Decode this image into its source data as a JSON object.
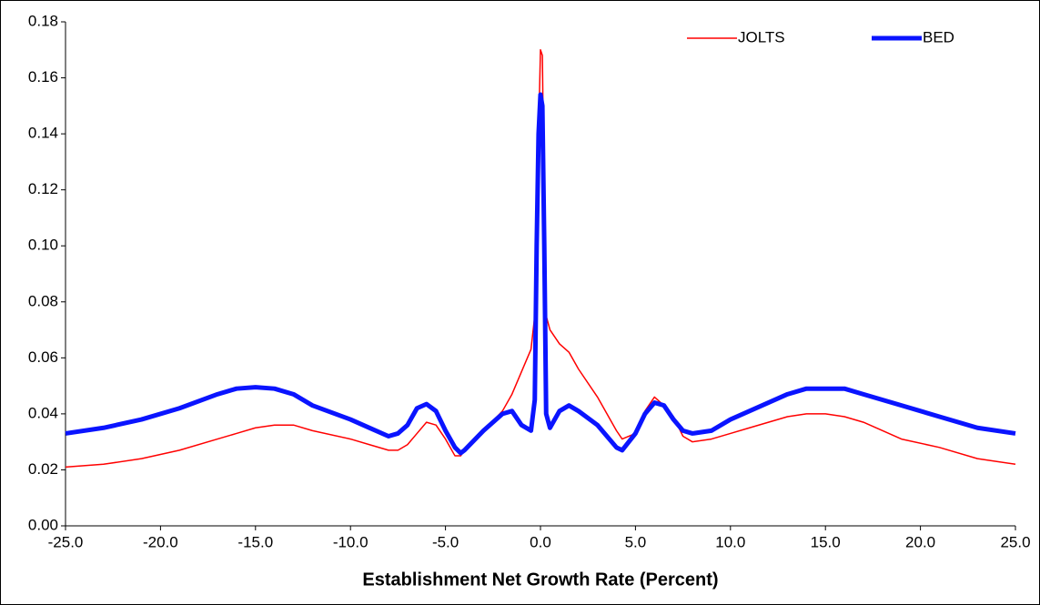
{
  "chart_data": {
    "type": "line",
    "x_label": "Establishment Net Growth Rate (Percent)",
    "x": [
      -25,
      -23,
      -21,
      -19,
      -17,
      -16,
      -15,
      -14,
      -13,
      -12,
      -10,
      -9,
      -8,
      -7.5,
      -7,
      -6.5,
      -6,
      -5.5,
      -5,
      -4.5,
      -4.2,
      -4,
      -3,
      -2,
      -1.5,
      -1,
      -0.5,
      -0.3,
      -0.2,
      -0.1,
      0,
      0.1,
      0.2,
      0.3,
      0.5,
      1,
      1.5,
      2,
      3,
      4,
      4.3,
      5,
      5.5,
      6,
      6.5,
      7,
      7.5,
      8,
      9,
      10,
      11,
      12,
      13,
      14,
      15,
      16,
      17,
      19,
      21,
      23,
      25
    ],
    "series": [
      {
        "name": "JOLTS",
        "color": "#ff0000",
        "width": 1.5,
        "values": [
          0.021,
          0.022,
          0.024,
          0.027,
          0.031,
          0.033,
          0.035,
          0.036,
          0.036,
          0.034,
          0.031,
          0.029,
          0.027,
          0.027,
          0.029,
          0.033,
          0.037,
          0.036,
          0.031,
          0.025,
          0.025,
          0.027,
          0.034,
          0.041,
          0.047,
          0.055,
          0.063,
          0.075,
          0.1,
          0.14,
          0.17,
          0.168,
          0.11,
          0.075,
          0.07,
          0.065,
          0.062,
          0.056,
          0.046,
          0.034,
          0.031,
          0.033,
          0.041,
          0.046,
          0.043,
          0.039,
          0.032,
          0.03,
          0.031,
          0.033,
          0.035,
          0.037,
          0.039,
          0.04,
          0.04,
          0.039,
          0.037,
          0.031,
          0.028,
          0.024,
          0.022
        ]
      },
      {
        "name": "BED",
        "color": "#0a14ff",
        "width": 5,
        "values": [
          0.033,
          0.035,
          0.038,
          0.042,
          0.047,
          0.049,
          0.0495,
          0.049,
          0.047,
          0.043,
          0.038,
          0.035,
          0.032,
          0.033,
          0.036,
          0.042,
          0.0435,
          0.041,
          0.034,
          0.028,
          0.026,
          0.027,
          0.034,
          0.04,
          0.041,
          0.036,
          0.034,
          0.045,
          0.1,
          0.14,
          0.154,
          0.15,
          0.1,
          0.04,
          0.035,
          0.041,
          0.043,
          0.041,
          0.036,
          0.028,
          0.027,
          0.033,
          0.04,
          0.044,
          0.043,
          0.038,
          0.034,
          0.033,
          0.034,
          0.038,
          0.041,
          0.044,
          0.047,
          0.049,
          0.049,
          0.049,
          0.047,
          0.043,
          0.039,
          0.035,
          0.033
        ]
      }
    ],
    "xlim": [
      -25,
      25
    ],
    "xticks": [
      {
        "value": -25,
        "label": "-25.0"
      },
      {
        "value": -20,
        "label": "-20.0"
      },
      {
        "value": -15,
        "label": "-15.0"
      },
      {
        "value": -10,
        "label": "-10.0"
      },
      {
        "value": -5,
        "label": "-5.0"
      },
      {
        "value": 0,
        "label": "0.0"
      },
      {
        "value": 5,
        "label": "5.0"
      },
      {
        "value": 10,
        "label": "10.0"
      },
      {
        "value": 15,
        "label": "15.0"
      },
      {
        "value": 20,
        "label": "20.0"
      },
      {
        "value": 25,
        "label": "25.0"
      }
    ],
    "ylim": [
      0,
      0.18
    ],
    "yticks": [
      {
        "value": 0,
        "label": "0.00"
      },
      0.02,
      0.04,
      0.06,
      0.08,
      {
        "value": 0.1,
        "label": "0.10"
      },
      0.12,
      0.14,
      0.16,
      0.18
    ],
    "grid": false,
    "legend": "top-right"
  }
}
